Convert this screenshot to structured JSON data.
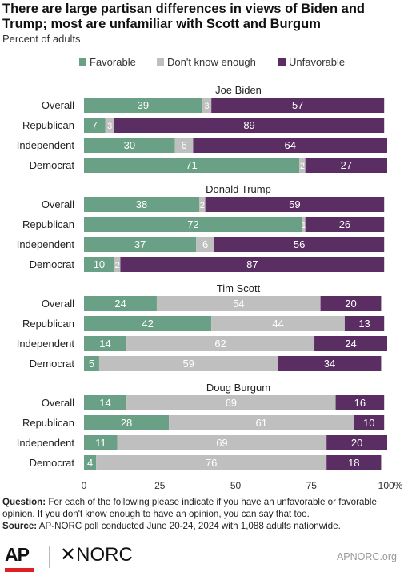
{
  "header": {
    "title": "There are large partisan differences in views of Biden and Trump; most are unfamiliar with Scott and Burgum",
    "subtitle": "Percent of adults"
  },
  "colors": {
    "favorable": "#6aa186",
    "dont_know": "#bfbfbf",
    "unfavorable": "#5a2d63",
    "label_on_dark": "#ffffff",
    "label_on_gray": "#ffffff",
    "axis_text": "#333333"
  },
  "chart_data": {
    "type": "bar",
    "orientation": "horizontal-stacked",
    "legend": [
      "Favorable",
      "Don't know enough",
      "Unfavorable"
    ],
    "legend_placement": "top",
    "xlim": [
      0,
      100
    ],
    "xticks": [
      "0",
      "25",
      "50",
      "75",
      "100%"
    ],
    "grid": false,
    "panels": [
      {
        "title": "Joe Biden",
        "rows": [
          {
            "label": "Overall",
            "values": [
              39,
              3,
              57
            ]
          },
          {
            "label": "Republican",
            "values": [
              7,
              3,
              89
            ]
          },
          {
            "label": "Independent",
            "values": [
              30,
              6,
              64
            ]
          },
          {
            "label": "Democrat",
            "values": [
              71,
              2,
              27
            ]
          }
        ]
      },
      {
        "title": "Donald Trump",
        "rows": [
          {
            "label": "Overall",
            "values": [
              38,
              2,
              59
            ]
          },
          {
            "label": "Republican",
            "values": [
              72,
              1,
              26
            ]
          },
          {
            "label": "Independent",
            "values": [
              37,
              6,
              56
            ]
          },
          {
            "label": "Democrat",
            "values": [
              10,
              2,
              87
            ]
          }
        ]
      },
      {
        "title": "Tim Scott",
        "rows": [
          {
            "label": "Overall",
            "values": [
              24,
              54,
              20
            ]
          },
          {
            "label": "Republican",
            "values": [
              42,
              44,
              13
            ]
          },
          {
            "label": "Independent",
            "values": [
              14,
              62,
              24
            ]
          },
          {
            "label": "Democrat",
            "values": [
              5,
              59,
              34
            ]
          }
        ]
      },
      {
        "title": "Doug Burgum",
        "rows": [
          {
            "label": "Overall",
            "values": [
              14,
              69,
              16
            ]
          },
          {
            "label": "Republican",
            "values": [
              28,
              61,
              10
            ]
          },
          {
            "label": "Independent",
            "values": [
              11,
              69,
              20
            ]
          },
          {
            "label": "Democrat",
            "values": [
              4,
              76,
              18
            ]
          }
        ]
      }
    ]
  },
  "footer": {
    "question_label": "Question:",
    "question_text": "For each of the following please indicate if you have an unfavorable or favorable opinion. If you don't know enough to have an opinion, you can say that too.",
    "source_label": "Source:",
    "source_text": "AP-NORC poll conducted June 20-24, 2024 with 1,088 adults nationwide.",
    "logo_ap": "AP",
    "logo_norc": "✕NORC",
    "site": "APNORC.org"
  }
}
